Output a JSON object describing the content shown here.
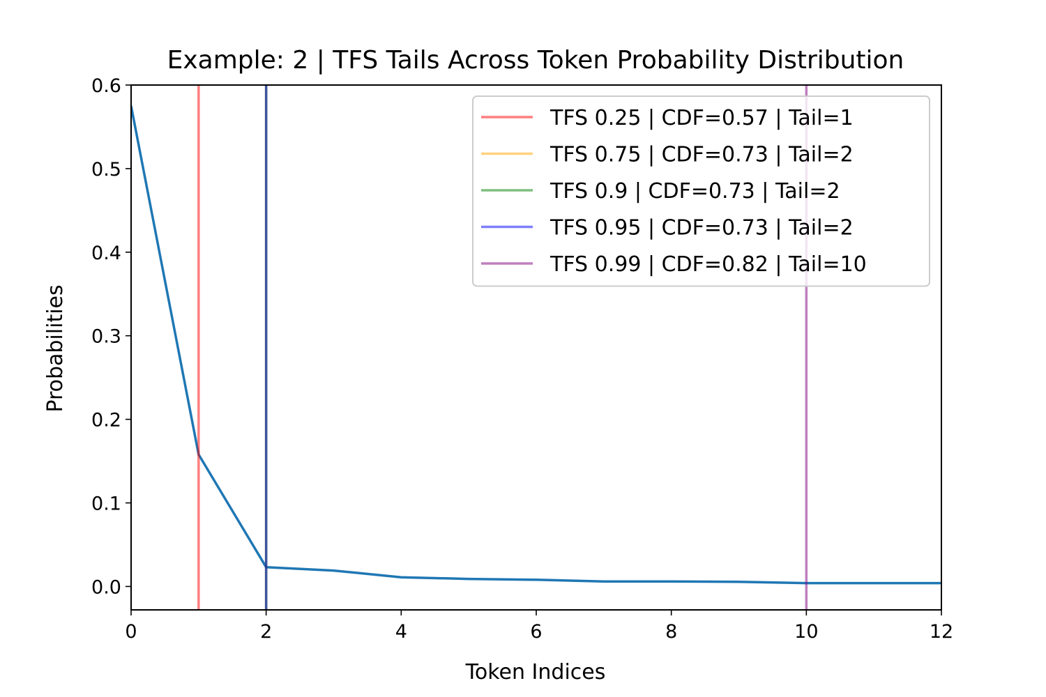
{
  "chart_data": {
    "type": "line",
    "title": "Example: 2 | TFS Tails Across Token Probability Distribution",
    "xlabel": "Token Indices",
    "ylabel": "Probabilities",
    "xlim": [
      0,
      12
    ],
    "ylim": [
      -0.028,
      0.6
    ],
    "xticks": [
      "0",
      "2",
      "4",
      "6",
      "8",
      "10",
      "12"
    ],
    "yticks": [
      "0.0",
      "0.1",
      "0.2",
      "0.3",
      "0.4",
      "0.5",
      "0.6"
    ],
    "grid": false,
    "legend_position": "top-right",
    "series": [
      {
        "color": "#1f77b4",
        "x": [
          0,
          1,
          2,
          3,
          4,
          5,
          6,
          7,
          8,
          9,
          10,
          11,
          12
        ],
        "y": [
          0.575,
          0.158,
          0.023,
          0.019,
          0.011,
          0.009,
          0.008,
          0.006,
          0.006,
          0.0055,
          0.004,
          0.004,
          0.004
        ]
      }
    ],
    "vlines": [
      {
        "x": 1,
        "color": "#ff0000",
        "label": "TFS 0.25 | CDF=0.57 | Tail=1"
      },
      {
        "x": 2,
        "color": "#ffa500",
        "label": "TFS 0.75 | CDF=0.73 | Tail=2"
      },
      {
        "x": 2,
        "color": "#008000",
        "label": "TFS 0.9 | CDF=0.73 | Tail=2"
      },
      {
        "x": 2,
        "color": "#0000ff",
        "label": "TFS 0.95 | CDF=0.73 | Tail=2"
      },
      {
        "x": 10,
        "color": "#800080",
        "label": "TFS 0.99 | CDF=0.82 | Tail=10"
      }
    ]
  }
}
